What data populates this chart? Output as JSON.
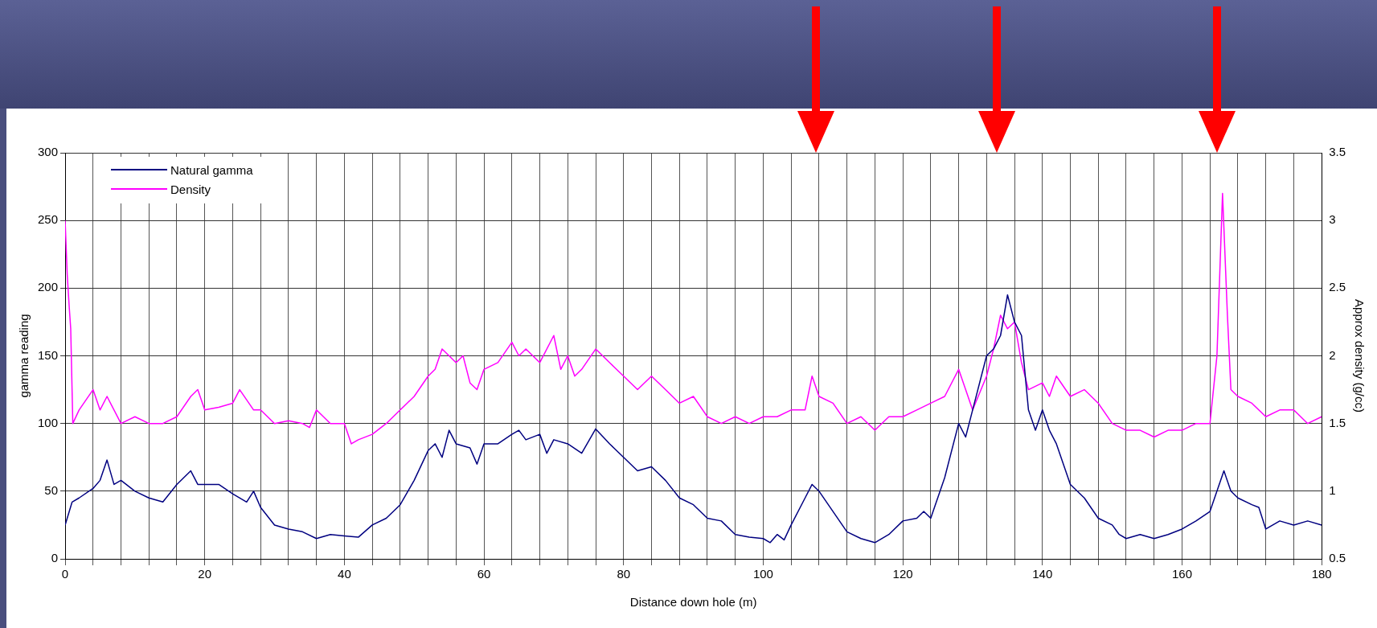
{
  "chart_data": {
    "type": "line",
    "xlabel": "Distance down hole (m)",
    "ylabel": "gamma reading",
    "y2label": "Approx density (g/cc)",
    "xlim": [
      0,
      180
    ],
    "xticks": [
      0,
      {
        "value": 4,
        "label": null
      },
      {
        "value": 8,
        "label": null
      },
      {
        "value": 12,
        "label": null
      },
      {
        "value": 16,
        "label": null
      },
      20,
      {
        "value": 24,
        "label": null
      },
      {
        "value": 28,
        "label": null
      },
      {
        "value": 32,
        "label": null
      },
      {
        "value": 36,
        "label": null
      },
      40,
      {
        "value": 44,
        "label": null
      },
      {
        "value": 48,
        "label": null
      },
      {
        "value": 52,
        "label": null
      },
      {
        "value": 56,
        "label": null
      },
      60,
      {
        "value": 64,
        "label": null
      },
      {
        "value": 68,
        "label": null
      },
      {
        "value": 72,
        "label": null
      },
      {
        "value": 76,
        "label": null
      },
      80,
      {
        "value": 84,
        "label": null
      },
      {
        "value": 88,
        "label": null
      },
      {
        "value": 92,
        "label": null
      },
      {
        "value": 96,
        "label": null
      },
      100,
      {
        "value": 104,
        "label": null
      },
      {
        "value": 108,
        "label": null
      },
      {
        "value": 112,
        "label": null
      },
      {
        "value": 116,
        "label": null
      },
      120,
      {
        "value": 124,
        "label": null
      },
      {
        "value": 128,
        "label": null
      },
      {
        "value": 132,
        "label": null
      },
      {
        "value": 136,
        "label": null
      },
      140,
      {
        "value": 144,
        "label": null
      },
      {
        "value": 148,
        "label": null
      },
      {
        "value": 152,
        "label": null
      },
      {
        "value": 156,
        "label": null
      },
      160,
      {
        "value": 164,
        "label": null
      },
      {
        "value": 168,
        "label": null
      },
      {
        "value": 172,
        "label": null
      },
      {
        "value": 176,
        "label": null
      },
      180
    ],
    "ylim": [
      0,
      300
    ],
    "yticks": [
      0,
      50,
      100,
      150,
      200,
      250,
      300
    ],
    "y2lim": [
      0.5,
      3.5
    ],
    "y2ticks": [
      0.5,
      1,
      1.5,
      2,
      2.5,
      3,
      3.5
    ],
    "grid": true,
    "legend": "top left",
    "marker": "none",
    "line_style": "solid",
    "series": [
      {
        "name": "Natural gamma",
        "color": "#000080",
        "x": [
          0,
          1,
          2,
          4,
          5,
          6,
          7,
          8,
          10,
          12,
          14,
          16,
          18,
          19,
          20,
          22,
          24,
          26,
          27,
          28,
          30,
          32,
          34,
          36,
          38,
          40,
          42,
          44,
          46,
          48,
          50,
          52,
          53,
          54,
          55,
          56,
          58,
          59,
          60,
          62,
          64,
          65,
          66,
          68,
          69,
          70,
          72,
          74,
          76,
          78,
          80,
          82,
          84,
          86,
          88,
          90,
          92,
          94,
          96,
          98,
          100,
          101,
          102,
          103,
          104,
          106,
          107,
          108,
          110,
          112,
          114,
          116,
          118,
          120,
          122,
          123,
          124,
          126,
          128,
          129,
          130,
          132,
          133,
          134,
          135,
          136,
          137,
          138,
          139,
          140,
          141,
          142,
          144,
          146,
          148,
          150,
          151,
          152,
          154,
          156,
          158,
          160,
          162,
          164,
          165,
          166,
          167,
          168,
          170,
          171,
          172,
          174,
          176,
          178,
          180
        ],
        "values": [
          25,
          42,
          45,
          52,
          58,
          73,
          55,
          58,
          50,
          45,
          42,
          55,
          65,
          55,
          55,
          55,
          48,
          42,
          50,
          38,
          25,
          22,
          20,
          15,
          18,
          17,
          16,
          25,
          30,
          40,
          58,
          80,
          85,
          75,
          95,
          85,
          82,
          70,
          85,
          85,
          92,
          95,
          88,
          92,
          78,
          88,
          85,
          78,
          96,
          85,
          75,
          65,
          68,
          58,
          45,
          40,
          30,
          28,
          18,
          16,
          15,
          12,
          18,
          14,
          25,
          45,
          55,
          50,
          35,
          20,
          15,
          12,
          18,
          28,
          30,
          35,
          30,
          60,
          100,
          90,
          110,
          150,
          155,
          165,
          195,
          175,
          165,
          110,
          95,
          110,
          95,
          85,
          55,
          45,
          30,
          25,
          18,
          15,
          18,
          15,
          18,
          22,
          28,
          35,
          50,
          65,
          50,
          45,
          40,
          38,
          22,
          28,
          25,
          28,
          25
        ]
      },
      {
        "name": "Density",
        "color": "#ff00ff",
        "axis": "y2",
        "x": [
          0,
          0.3,
          0.6,
          0.8,
          1.1,
          2,
          4,
          5,
          6,
          8,
          10,
          12,
          14,
          16,
          18,
          19,
          20,
          22,
          24,
          25,
          27,
          28,
          30,
          32,
          34,
          35,
          36,
          37,
          38,
          40,
          41,
          42,
          44,
          46,
          48,
          50,
          52,
          53,
          54,
          56,
          57,
          58,
          59,
          60,
          62,
          64,
          65,
          66,
          68,
          70,
          71,
          72,
          73,
          74,
          76,
          78,
          80,
          82,
          84,
          86,
          88,
          90,
          92,
          94,
          96,
          98,
          100,
          102,
          104,
          106,
          107,
          108,
          110,
          112,
          114,
          116,
          118,
          120,
          122,
          124,
          126,
          128,
          129,
          130,
          132,
          133,
          134,
          135,
          136,
          137,
          138,
          140,
          141,
          142,
          144,
          146,
          148,
          150,
          152,
          154,
          156,
          158,
          160,
          162,
          164,
          165,
          165.8,
          166.5,
          167,
          168,
          170,
          172,
          174,
          176,
          178,
          180
        ],
        "values": [
          3.0,
          2.6,
          2.35,
          2.2,
          1.5,
          1.6,
          1.75,
          1.6,
          1.7,
          1.5,
          1.55,
          1.5,
          1.5,
          1.55,
          1.7,
          1.75,
          1.6,
          1.62,
          1.65,
          1.75,
          1.6,
          1.6,
          1.5,
          1.52,
          1.5,
          1.47,
          1.6,
          1.55,
          1.5,
          1.5,
          1.35,
          1.38,
          1.42,
          1.5,
          1.6,
          1.7,
          1.85,
          1.9,
          2.05,
          1.95,
          2.0,
          1.8,
          1.75,
          1.9,
          1.95,
          2.1,
          2.0,
          2.05,
          1.95,
          2.15,
          1.9,
          2.0,
          1.85,
          1.9,
          2.05,
          1.95,
          1.85,
          1.75,
          1.85,
          1.75,
          1.65,
          1.7,
          1.55,
          1.5,
          1.55,
          1.5,
          1.55,
          1.55,
          1.6,
          1.6,
          1.85,
          1.7,
          1.65,
          1.5,
          1.55,
          1.45,
          1.55,
          1.55,
          1.6,
          1.65,
          1.7,
          1.9,
          1.75,
          1.6,
          1.85,
          2.05,
          2.3,
          2.2,
          2.25,
          1.95,
          1.75,
          1.8,
          1.7,
          1.85,
          1.7,
          1.75,
          1.65,
          1.5,
          1.45,
          1.45,
          1.4,
          1.45,
          1.45,
          1.5,
          1.5,
          2.0,
          3.2,
          2.3,
          1.75,
          1.7,
          1.65,
          1.55,
          1.6,
          1.6,
          1.5,
          1.55
        ]
      }
    ]
  }
}
